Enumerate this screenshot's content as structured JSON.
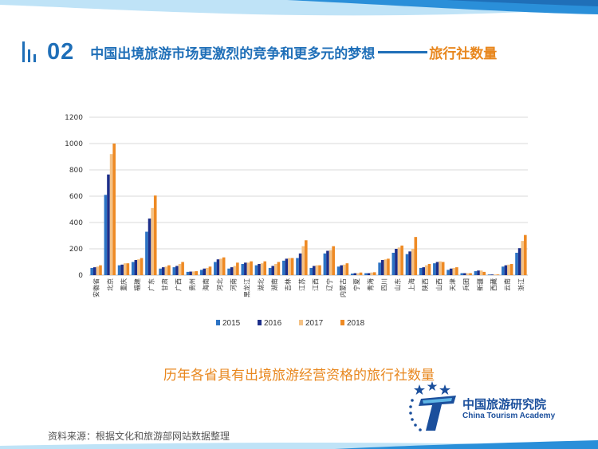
{
  "slide": {
    "section_number": "02",
    "title_main": "中国出境旅游市场更激烈的竞争和更多元的梦想",
    "title_accent": "旅行社数量",
    "caption": "历年各省具有出境旅游经营资格的旅行社数量",
    "source": "资料来源：根据文化和旅游部网站数据整理",
    "logo_cn": "中国旅游研究院",
    "logo_en": "China Tourism Academy",
    "logo_letter": "T",
    "colors": {
      "brand_blue": "#1f6fb8",
      "accent_orange": "#e8871e",
      "band_light_blue": "#bfe3f7",
      "band_blue": "#2a8fd9",
      "logo_navy": "#1b4f9c"
    },
    "icons": [
      "section-bars-icon",
      "star-icon",
      "logo-t-icon"
    ]
  },
  "chart_data": {
    "type": "bar",
    "title": "",
    "xlabel": "",
    "ylabel": "",
    "ylim": [
      0,
      1200
    ],
    "yticks": [
      "0",
      "200",
      "400",
      "600",
      "800",
      "1000",
      "1200"
    ],
    "grid": true,
    "legend_position": "bottom-center",
    "categories": [
      "安徽省",
      "北京",
      "重庆",
      "福建",
      "广东",
      "甘肃",
      "广西",
      "贵州",
      "海南",
      "河北",
      "河南",
      "黑龙江",
      "湖北",
      "湖南",
      "吉林",
      "江苏",
      "江西",
      "辽宁",
      "内蒙古",
      "宁夏",
      "青海",
      "四川",
      "山东",
      "上海",
      "陕西",
      "山西",
      "天津",
      "兵团",
      "新疆",
      "西藏",
      "云南",
      "浙江"
    ],
    "series": [
      {
        "name": "2015",
        "color": "#2c73c4",
        "values": [
          55,
          610,
          75,
          100,
          330,
          50,
          60,
          25,
          40,
          100,
          50,
          85,
          75,
          55,
          110,
          130,
          55,
          165,
          65,
          12,
          15,
          95,
          170,
          160,
          55,
          90,
          40,
          15,
          30,
          5,
          65,
          170
        ]
      },
      {
        "name": "2016",
        "color": "#1d2f8a",
        "values": [
          60,
          765,
          80,
          115,
          430,
          60,
          70,
          27,
          50,
          120,
          60,
          95,
          85,
          70,
          125,
          165,
          70,
          185,
          75,
          15,
          15,
          115,
          200,
          180,
          60,
          100,
          50,
          15,
          35,
          5,
          75,
          205
        ]
      },
      {
        "name": "2017",
        "color": "#f4c286",
        "values": [
          65,
          920,
          90,
          120,
          510,
          65,
          85,
          28,
          55,
          125,
          70,
          95,
          90,
          85,
          130,
          220,
          75,
          190,
          80,
          15,
          20,
          120,
          210,
          200,
          75,
          105,
          55,
          15,
          35,
          5,
          80,
          260
        ]
      },
      {
        "name": "2018",
        "color": "#ee8a24",
        "values": [
          75,
          1000,
          90,
          130,
          605,
          75,
          100,
          30,
          65,
          135,
          95,
          105,
          105,
          100,
          130,
          265,
          75,
          220,
          90,
          20,
          22,
          125,
          225,
          290,
          85,
          100,
          60,
          15,
          25,
          5,
          85,
          305
        ]
      }
    ]
  }
}
